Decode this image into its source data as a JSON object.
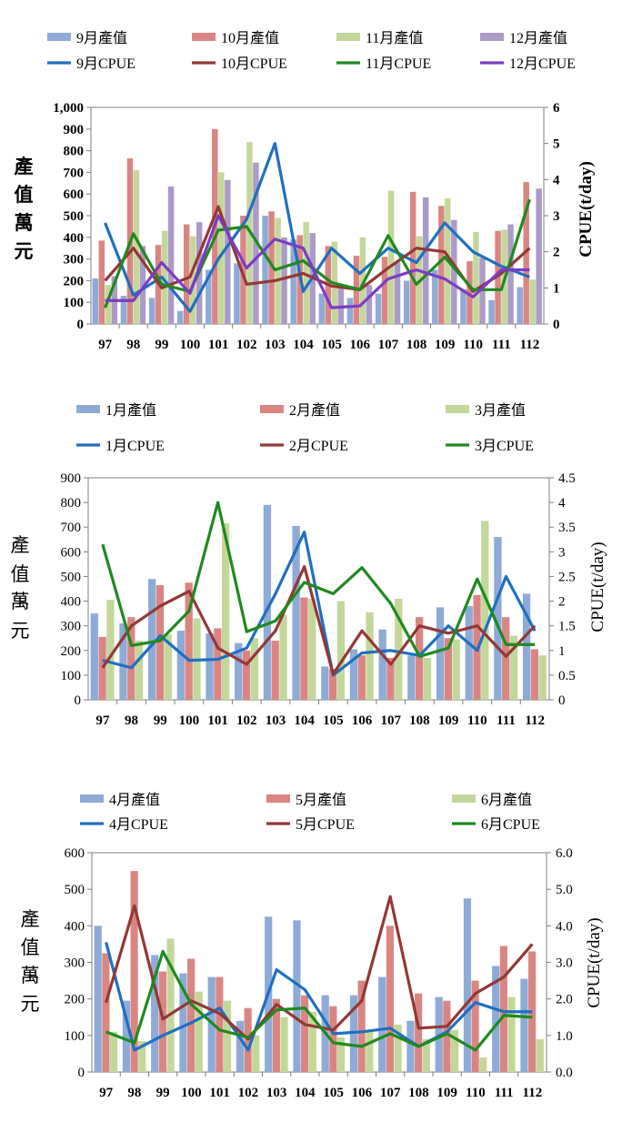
{
  "categories": [
    "97",
    "98",
    "99",
    "100",
    "101",
    "102",
    "103",
    "104",
    "105",
    "106",
    "107",
    "108",
    "109",
    "110",
    "111",
    "112"
  ],
  "chart_data": [
    {
      "type": "bar",
      "title": "",
      "xlabel": "",
      "ylabel": "產值(萬元)",
      "y2label": "CPUE(t/day)",
      "ylim": [
        0,
        1000
      ],
      "yticks": [
        0,
        100,
        200,
        300,
        400,
        500,
        600,
        700,
        800,
        900,
        1000
      ],
      "ytick_labels": [
        "0",
        "100",
        "200",
        "300",
        "400",
        "500",
        "600",
        "700",
        "800",
        "900",
        "1,000"
      ],
      "y2lim": [
        0,
        6
      ],
      "y2ticks": [
        0,
        1,
        2,
        3,
        4,
        5,
        6
      ],
      "y2tick_labels": [
        "0",
        "1",
        "2",
        "3",
        "4",
        "5",
        "6"
      ],
      "legend": "top",
      "legend_rows": [
        [
          "9月產值",
          "10月產值",
          "11月產值",
          "12月產值"
        ],
        [
          "9月CPUE",
          "10月CPUE",
          "11月CPUE",
          "12月CPUE"
        ]
      ],
      "bar_series": [
        {
          "name": "9月產值",
          "color": "#8eaad6",
          "values": [
            210,
            130,
            120,
            60,
            250,
            280,
            500,
            390,
            140,
            120,
            140,
            200,
            250,
            160,
            110,
            170
          ]
        },
        {
          "name": "10月產值",
          "color": "#d98683",
          "values": [
            385,
            765,
            365,
            460,
            900,
            500,
            520,
            410,
            360,
            315,
            310,
            610,
            545,
            290,
            430,
            655
          ]
        },
        {
          "name": "11月產值",
          "color": "#c3d79b",
          "values": [
            180,
            710,
            430,
            405,
            700,
            840,
            490,
            470,
            380,
            400,
            615,
            405,
            580,
            425,
            435,
            205
          ]
        },
        {
          "name": "12月產值",
          "color": "#ab9bc7",
          "values": [
            220,
            360,
            635,
            470,
            665,
            745,
            400,
            420,
            165,
            180,
            285,
            585,
            480,
            305,
            460,
            625
          ]
        }
      ],
      "line_series": [
        {
          "name": "9月CPUE",
          "color": "#1f6fc1",
          "values": [
            2.8,
            0.8,
            1.3,
            0.35,
            1.8,
            2.9,
            5.0,
            0.9,
            2.1,
            1.4,
            2.1,
            1.7,
            2.8,
            2.0,
            1.6,
            1.3
          ]
        },
        {
          "name": "10月CPUE",
          "color": "#943735",
          "values": [
            1.2,
            2.1,
            1.0,
            1.3,
            3.25,
            1.1,
            1.2,
            1.4,
            1.05,
            0.95,
            1.55,
            2.1,
            2.0,
            0.9,
            1.4,
            2.1
          ]
        },
        {
          "name": "11月CPUE",
          "color": "#1e8a1e",
          "values": [
            0.45,
            2.5,
            1.1,
            0.9,
            2.6,
            2.7,
            1.5,
            1.75,
            1.15,
            0.95,
            2.45,
            1.1,
            1.85,
            0.95,
            0.95,
            3.45
          ]
        },
        {
          "name": "12月CPUE",
          "color": "#7b3bc4",
          "values": [
            0.65,
            0.65,
            1.7,
            0.85,
            3.0,
            1.55,
            2.35,
            2.1,
            0.45,
            0.5,
            1.25,
            1.5,
            1.25,
            0.75,
            1.5,
            1.5
          ]
        }
      ]
    },
    {
      "type": "bar",
      "title": "",
      "xlabel": "",
      "ylabel": "產值(萬元)",
      "y2label": "CPUE(t/day)",
      "ylim": [
        0,
        900
      ],
      "yticks": [
        0,
        100,
        200,
        300,
        400,
        500,
        600,
        700,
        800,
        900
      ],
      "ytick_labels": [
        "0",
        "100",
        "200",
        "300",
        "400",
        "500",
        "600",
        "700",
        "800",
        "900"
      ],
      "y2lim": [
        0,
        4.5
      ],
      "y2ticks": [
        0,
        0.5,
        1,
        1.5,
        2,
        2.5,
        3,
        3.5,
        4,
        4.5
      ],
      "y2tick_labels": [
        "0",
        "0.5",
        "1",
        "1.5",
        "2",
        "2.5",
        "3",
        "3.5",
        "4",
        "4.5"
      ],
      "legend": "top",
      "legend_rows": [
        [
          "1月產值",
          "2月產值",
          "3月產值"
        ],
        [
          "1月CPUE",
          "2月CPUE",
          "3月CPUE"
        ]
      ],
      "bar_series": [
        {
          "name": "1月產值",
          "color": "#8eaad6",
          "values": [
            350,
            310,
            490,
            280,
            270,
            230,
            790,
            705,
            135,
            205,
            285,
            180,
            375,
            380,
            660,
            430
          ]
        },
        {
          "name": "2月產值",
          "color": "#d98683",
          "values": [
            255,
            335,
            465,
            475,
            290,
            200,
            240,
            415,
            125,
            180,
            170,
            335,
            250,
            425,
            335,
            205
          ]
        },
        {
          "name": "3月產值",
          "color": "#c3d79b",
          "values": [
            405,
            240,
            265,
            330,
            715,
            250,
            345,
            410,
            400,
            355,
            410,
            170,
            245,
            725,
            260,
            180
          ]
        }
      ],
      "line_series": [
        {
          "name": "1月CPUE",
          "color": "#1f6fc1",
          "values": [
            0.8,
            0.65,
            1.3,
            0.8,
            0.82,
            1.05,
            2.15,
            3.4,
            0.5,
            0.95,
            1.0,
            0.9,
            1.5,
            1.0,
            2.5,
            1.4
          ]
        },
        {
          "name": "2月CPUE",
          "color": "#943735",
          "values": [
            0.65,
            1.5,
            1.9,
            2.2,
            1.05,
            0.72,
            1.4,
            2.7,
            0.52,
            1.4,
            0.72,
            1.5,
            1.35,
            1.5,
            0.88,
            1.5
          ]
        },
        {
          "name": "3月CPUE",
          "color": "#1e8a1e",
          "values": [
            3.15,
            1.1,
            1.2,
            1.8,
            4.0,
            1.38,
            1.6,
            2.38,
            2.15,
            2.68,
            1.95,
            0.88,
            1.05,
            2.45,
            1.12,
            1.12
          ]
        }
      ]
    },
    {
      "type": "bar",
      "title": "",
      "xlabel": "",
      "ylabel": "產值(萬元)",
      "y2label": "CPUE(t/day)",
      "ylim": [
        0,
        600
      ],
      "yticks": [
        0,
        100,
        200,
        300,
        400,
        500,
        600
      ],
      "ytick_labels": [
        "0",
        "100",
        "200",
        "300",
        "400",
        "500",
        "600"
      ],
      "y2lim": [
        0,
        6
      ],
      "y2ticks": [
        0,
        1,
        2,
        3,
        4,
        5,
        6
      ],
      "y2tick_labels": [
        "0.0",
        "1.0",
        "2.0",
        "3.0",
        "4.0",
        "5.0",
        "6.0"
      ],
      "legend": "top",
      "legend_rows": [
        [
          "4月產值",
          "5月產值",
          "6月產值"
        ],
        [
          "4月CPUE",
          "5月CPUE",
          "6月CPUE"
        ]
      ],
      "bar_series": [
        {
          "name": "4月產值",
          "color": "#8eaad6",
          "values": [
            400,
            195,
            320,
            270,
            260,
            140,
            425,
            415,
            210,
            210,
            260,
            140,
            205,
            475,
            290,
            255
          ]
        },
        {
          "name": "5月產值",
          "color": "#d98683",
          "values": [
            325,
            550,
            275,
            310,
            260,
            175,
            200,
            210,
            180,
            250,
            400,
            215,
            195,
            250,
            345,
            330
          ]
        },
        {
          "name": "6月產值",
          "color": "#c3d79b",
          "values": [
            110,
            85,
            365,
            220,
            195,
            100,
            150,
            165,
            95,
            110,
            130,
            90,
            115,
            40,
            205,
            90
          ]
        }
      ],
      "line_series": [
        {
          "name": "4月CPUE",
          "color": "#1f6fc1",
          "values": [
            3.55,
            0.6,
            1.0,
            1.35,
            1.75,
            0.6,
            2.8,
            2.25,
            1.05,
            1.1,
            1.2,
            0.7,
            1.1,
            1.9,
            1.65,
            1.65
          ]
        },
        {
          "name": "5月CPUE",
          "color": "#943735",
          "values": [
            1.9,
            4.55,
            1.45,
            1.95,
            1.6,
            0.9,
            1.85,
            1.3,
            1.15,
            1.95,
            4.8,
            1.2,
            1.25,
            2.15,
            2.6,
            3.5
          ]
        },
        {
          "name": "6月CPUE",
          "color": "#1e8a1e",
          "values": [
            1.1,
            0.8,
            3.3,
            1.85,
            1.15,
            0.95,
            1.7,
            1.75,
            0.8,
            0.7,
            1.05,
            0.7,
            1.05,
            0.6,
            1.55,
            1.5
          ]
        }
      ]
    }
  ]
}
